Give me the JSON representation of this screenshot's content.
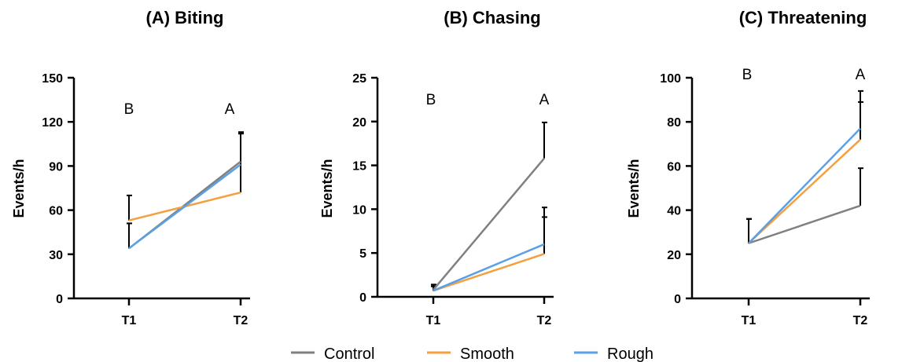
{
  "colors": {
    "control": "#808080",
    "smooth": "#F4A040",
    "rough": "#5AA0E8",
    "axis": "#000000"
  },
  "legend": [
    {
      "name": "Control",
      "color_key": "control"
    },
    {
      "name": "Smooth",
      "color_key": "smooth"
    },
    {
      "name": "Rough",
      "color_key": "rough"
    }
  ],
  "chart_data": [
    {
      "type": "line",
      "title": "(A) Biting",
      "ylabel": "Events/h",
      "xlabel": "",
      "categories": [
        "T1",
        "T2"
      ],
      "ylim": [
        0,
        150
      ],
      "yticks": [
        0,
        30,
        60,
        90,
        120,
        150
      ],
      "significance": [
        "B",
        "A"
      ],
      "series": [
        {
          "name": "Control",
          "values": [
            34,
            93
          ],
          "errors": [
            17,
            20
          ]
        },
        {
          "name": "Smooth",
          "values": [
            53,
            72
          ],
          "errors": [
            17,
            40
          ]
        },
        {
          "name": "Rough",
          "values": [
            34,
            91
          ],
          "errors": [
            17,
            22
          ]
        }
      ]
    },
    {
      "type": "line",
      "title": "(B) Chasing",
      "ylabel": "Events/h",
      "xlabel": "",
      "categories": [
        "T1",
        "T2"
      ],
      "ylim": [
        0,
        25
      ],
      "yticks": [
        0,
        5,
        10,
        15,
        20,
        25
      ],
      "significance": [
        "B",
        "A"
      ],
      "series": [
        {
          "name": "Control",
          "values": [
            0.8,
            15.8
          ],
          "errors": [
            0.6,
            4.1
          ]
        },
        {
          "name": "Smooth",
          "values": [
            0.7,
            4.9
          ],
          "errors": [
            0.5,
            4.2
          ]
        },
        {
          "name": "Rough",
          "values": [
            0.7,
            6.0
          ],
          "errors": [
            0.5,
            4.2
          ]
        }
      ]
    },
    {
      "type": "line",
      "title": "(C) Threatening",
      "ylabel": "Events/h",
      "xlabel": "",
      "categories": [
        "T1",
        "T2"
      ],
      "ylim": [
        0,
        100
      ],
      "yticks": [
        0,
        20,
        40,
        60,
        80,
        100
      ],
      "significance": [
        "B",
        "A"
      ],
      "series": [
        {
          "name": "Control",
          "values": [
            25,
            42
          ],
          "errors": [
            11,
            17
          ]
        },
        {
          "name": "Smooth",
          "values": [
            25,
            72
          ],
          "errors": [
            11,
            17
          ]
        },
        {
          "name": "Rough",
          "values": [
            25,
            77
          ],
          "errors": [
            11,
            17
          ]
        }
      ]
    }
  ]
}
